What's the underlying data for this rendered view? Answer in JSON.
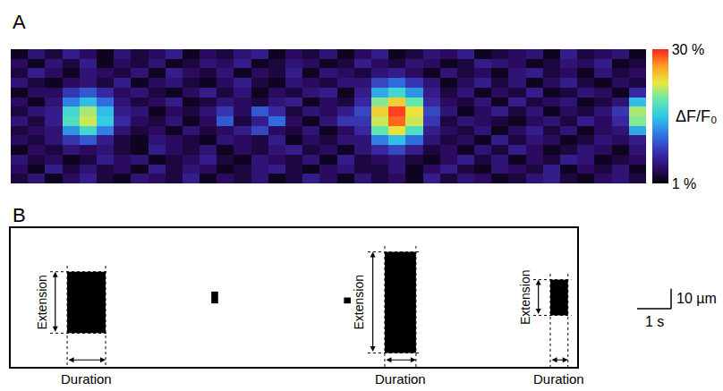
{
  "chart_data": [
    {
      "type": "heatmap",
      "title": "A",
      "x": [
        0.25,
        0.75,
        1.25,
        1.75,
        2.25,
        2.75,
        3.25,
        3.75,
        4.25,
        4.75,
        5.25,
        5.75,
        6.25,
        6.75,
        7.25,
        7.75,
        8.25,
        8.75,
        9.25,
        9.75,
        10.25,
        10.75,
        11.25,
        11.75,
        12.25,
        12.75,
        13.25,
        13.75,
        14.25,
        14.75,
        15.25,
        15.75,
        16.25,
        16.75,
        17.25,
        17.75,
        18.25
      ],
      "y": [
        2.5,
        7.5,
        12.5,
        17.5,
        22.5,
        27.5,
        32.5,
        37.5,
        42.5,
        47.5,
        52.5,
        57.5,
        62.5,
        67.5
      ],
      "z": [
        [
          3,
          5,
          2,
          4,
          6,
          3,
          2,
          5,
          4,
          3,
          6,
          2,
          4,
          3,
          5,
          2,
          3,
          6,
          4,
          2,
          5,
          3,
          4,
          2,
          6,
          3,
          5,
          4,
          2,
          3,
          5,
          6,
          3,
          2,
          4,
          5,
          3
        ],
        [
          4,
          2,
          6,
          3,
          5,
          3,
          4,
          2,
          6,
          3,
          5,
          4,
          2,
          3,
          5,
          6,
          3,
          2,
          4,
          5,
          3,
          3,
          5,
          2,
          4,
          6,
          3,
          2,
          5,
          4,
          3,
          6,
          2,
          4,
          3,
          5,
          2
        ],
        [
          5,
          3,
          4,
          2,
          3,
          6,
          4,
          5,
          2,
          3,
          4,
          6,
          3,
          2,
          5,
          4,
          3,
          5,
          2,
          6,
          3,
          4,
          5,
          3,
          2,
          4,
          6,
          3,
          5,
          2,
          4,
          3,
          6,
          5,
          2,
          3,
          4
        ],
        [
          2,
          4,
          3,
          5,
          4,
          5,
          3,
          2,
          6,
          4,
          3,
          5,
          2,
          4,
          3,
          5,
          6,
          3,
          4,
          2,
          5,
          7,
          9,
          6,
          3,
          4,
          2,
          5,
          3,
          6,
          4,
          2,
          3,
          5,
          4,
          2,
          5
        ],
        [
          4,
          3,
          5,
          8,
          10,
          6,
          3,
          2,
          5,
          4,
          3,
          2,
          5,
          4,
          3,
          6,
          2,
          4,
          3,
          5,
          5,
          12,
          15,
          11,
          5,
          3,
          4,
          2,
          6,
          3,
          5,
          4,
          2,
          3,
          5,
          4,
          6
        ],
        [
          3,
          4,
          5,
          13,
          17,
          12,
          5,
          3,
          4,
          2,
          5,
          3,
          4,
          6,
          9,
          4,
          3,
          5,
          2,
          4,
          7,
          19,
          23,
          18,
          6,
          4,
          3,
          5,
          2,
          4,
          6,
          3,
          5,
          2,
          4,
          5,
          14
        ],
        [
          5,
          3,
          6,
          18,
          22,
          16,
          7,
          4,
          3,
          5,
          2,
          4,
          10,
          3,
          6,
          11,
          4,
          2,
          5,
          8,
          8,
          22,
          28,
          22,
          8,
          3,
          5,
          4,
          3,
          2,
          4,
          5,
          3,
          6,
          4,
          7,
          20
        ],
        [
          3,
          5,
          6,
          17,
          21,
          15,
          6,
          5,
          2,
          4,
          3,
          5,
          8,
          4,
          10,
          7,
          3,
          5,
          4,
          6,
          9,
          24,
          29,
          23,
          9,
          5,
          2,
          4,
          6,
          3,
          5,
          2,
          4,
          3,
          5,
          8,
          21
        ],
        [
          4,
          2,
          5,
          12,
          15,
          11,
          5,
          3,
          4,
          6,
          2,
          3,
          5,
          4,
          3,
          5,
          6,
          2,
          4,
          3,
          7,
          20,
          24,
          19,
          7,
          4,
          3,
          5,
          2,
          6,
          3,
          4,
          5,
          2,
          3,
          5,
          15
        ],
        [
          2,
          4,
          4,
          8,
          10,
          7,
          4,
          5,
          3,
          2,
          4,
          6,
          3,
          5,
          2,
          4,
          3,
          5,
          6,
          2,
          6,
          14,
          17,
          13,
          6,
          3,
          5,
          2,
          4,
          3,
          6,
          2,
          3,
          5,
          4,
          2,
          7
        ],
        [
          5,
          3,
          2,
          4,
          5,
          3,
          6,
          2,
          4,
          5,
          3,
          2,
          4,
          6,
          3,
          2,
          5,
          4,
          3,
          5,
          5,
          9,
          11,
          8,
          5,
          2,
          4,
          6,
          3,
          5,
          2,
          4,
          6,
          3,
          2,
          4,
          3
        ],
        [
          3,
          6,
          4,
          2,
          5,
          4,
          3,
          5,
          2,
          6,
          4,
          3,
          5,
          2,
          4,
          3,
          6,
          2,
          5,
          4,
          3,
          5,
          6,
          4,
          2,
          5,
          3,
          4,
          2,
          5,
          6,
          3,
          4,
          2,
          5,
          3,
          4
        ],
        [
          4,
          2,
          5,
          3,
          6,
          2,
          4,
          3,
          5,
          2,
          3,
          5,
          4,
          6,
          2,
          3,
          5,
          4,
          2,
          3,
          6,
          4,
          3,
          5,
          4,
          2,
          3,
          6,
          5,
          4,
          2,
          3,
          5,
          4,
          6,
          2,
          3
        ],
        [
          2,
          5,
          3,
          6,
          4,
          2,
          5,
          3,
          4,
          6,
          2,
          4,
          3,
          5,
          6,
          2,
          4,
          3,
          5,
          2,
          4,
          6,
          2,
          3,
          5,
          4,
          6,
          2,
          3,
          4,
          5,
          2,
          6,
          3,
          4,
          5,
          2
        ]
      ],
      "xlim": [
        0,
        18.5
      ],
      "ylim": [
        0,
        70
      ],
      "tick_labels": false,
      "colorbar": {
        "title": "ΔF/F₀",
        "range": [
          1,
          30
        ],
        "ticks": [
          {
            "value": 1,
            "label": "1 %"
          },
          {
            "value": 30,
            "label": "30 %"
          }
        ]
      }
    },
    {
      "type": "mask",
      "title": "B",
      "color": "#000000",
      "xlim": [
        0,
        16.66
      ],
      "ylim": [
        0,
        70
      ],
      "tick_labels": false,
      "events": [
        {
          "duration": [
            1.66,
            2.79
          ],
          "extension": [
            17,
            48
          ],
          "extension_label": "Extension",
          "duration_label": "Duration"
        },
        {
          "duration": [
            11.0,
            11.92
          ],
          "extension": [
            7,
            58
          ],
          "extension_label": "Extension",
          "duration_label": "Duration"
        },
        {
          "duration": [
            15.87,
            16.39
          ],
          "extension": [
            26,
            44
          ],
          "extension_label": "Extension",
          "duration_label": "Duration"
        }
      ],
      "specks": [
        {
          "x": [
            5.9,
            6.1
          ],
          "y": [
            32,
            38
          ]
        },
        {
          "x": [
            9.8,
            10.0
          ],
          "y": [
            32,
            35
          ]
        }
      ],
      "scale_bars": [
        {
          "axis": "x",
          "value": 1,
          "label": "1 s"
        },
        {
          "axis": "y",
          "value": 10,
          "label": "10 µm"
        }
      ]
    }
  ]
}
